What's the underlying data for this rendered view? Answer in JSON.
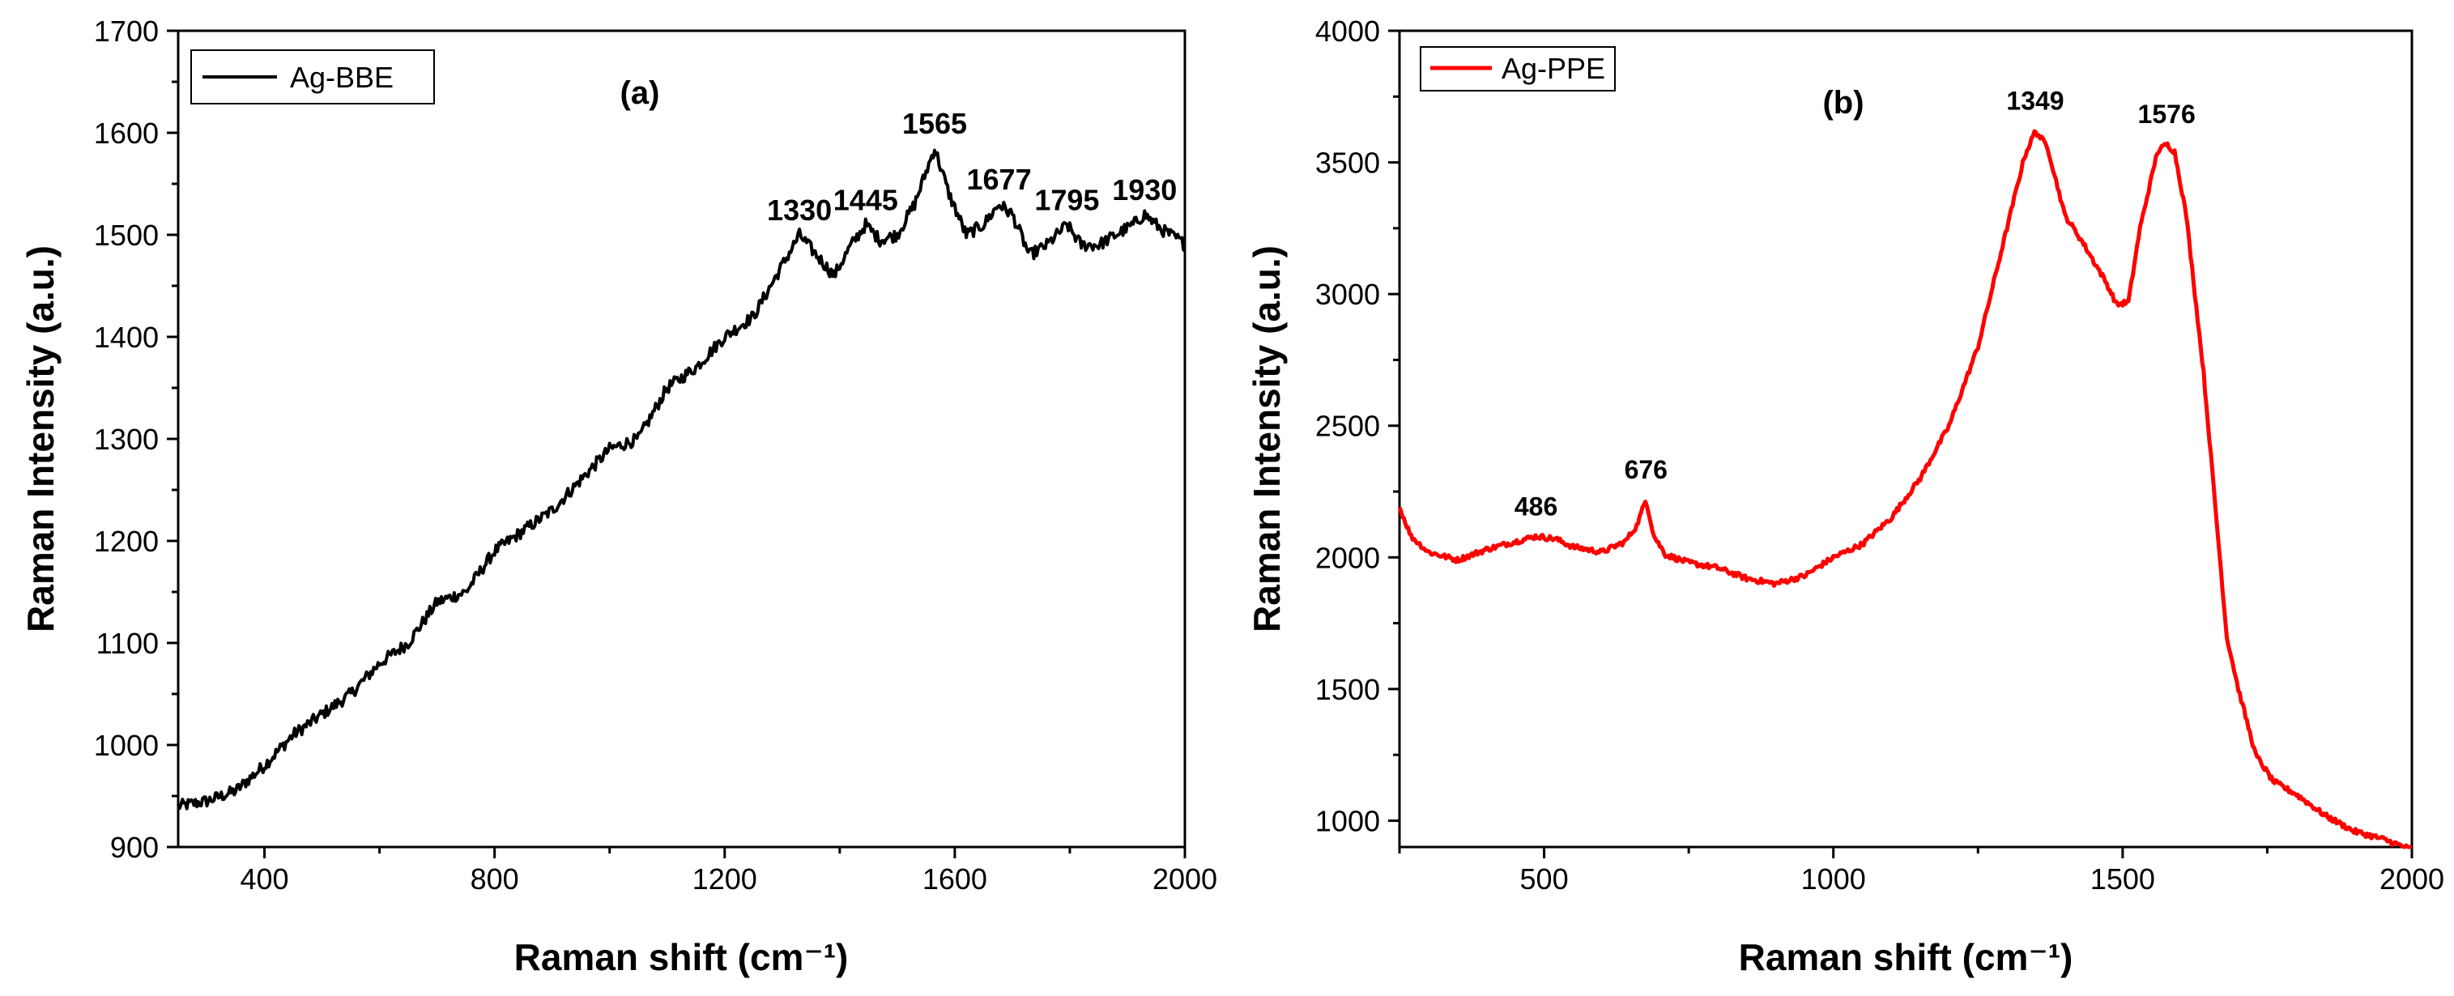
{
  "chart_data": [
    {
      "id": "a",
      "type": "line",
      "panel_label": "(a)",
      "xlabel": "Raman shift (cm⁻¹)",
      "ylabel": "Raman Intensity (a.u.)",
      "xlim": [
        250,
        2000
      ],
      "ylim": [
        900,
        1700
      ],
      "xticks": [
        400,
        800,
        1200,
        1600,
        2000
      ],
      "yticks": [
        900,
        1000,
        1100,
        1200,
        1300,
        1400,
        1500,
        1600,
        1700
      ],
      "color": "#000000",
      "legend": {
        "label": "Ag-BBE",
        "position": "top-left"
      },
      "series": [
        {
          "name": "Ag-BBE",
          "x": [
            250,
            300,
            350,
            400,
            450,
            500,
            550,
            600,
            650,
            700,
            750,
            800,
            850,
            900,
            950,
            1000,
            1050,
            1100,
            1150,
            1200,
            1250,
            1300,
            1330,
            1360,
            1390,
            1420,
            1445,
            1470,
            1500,
            1530,
            1565,
            1590,
            1620,
            1650,
            1677,
            1700,
            1730,
            1760,
            1795,
            1820,
            1850,
            1880,
            1910,
            1930,
            1960,
            1990,
            2000
          ],
          "y": [
            940,
            945,
            955,
            980,
            1010,
            1030,
            1050,
            1080,
            1100,
            1140,
            1150,
            1190,
            1210,
            1230,
            1260,
            1290,
            1300,
            1350,
            1370,
            1400,
            1420,
            1470,
            1500,
            1480,
            1460,
            1490,
            1510,
            1495,
            1500,
            1530,
            1585,
            1540,
            1500,
            1510,
            1530,
            1520,
            1480,
            1490,
            1510,
            1490,
            1490,
            1500,
            1510,
            1520,
            1505,
            1495,
            1490
          ]
        }
      ],
      "annotations": [
        {
          "text": "1330",
          "x": 1330,
          "y": 1500
        },
        {
          "text": "1445",
          "x": 1445,
          "y": 1510
        },
        {
          "text": "1565",
          "x": 1565,
          "y": 1585
        },
        {
          "text": "1677",
          "x": 1677,
          "y": 1530
        },
        {
          "text": "1795",
          "x": 1795,
          "y": 1510
        },
        {
          "text": "1930",
          "x": 1930,
          "y": 1520
        }
      ]
    },
    {
      "id": "b",
      "type": "line",
      "panel_label": "(b)",
      "xlabel": "Raman shift (cm⁻¹)",
      "ylabel": "Raman Intensity (a.u.)",
      "xlim": [
        250,
        2000
      ],
      "ylim": [
        900,
        4000
      ],
      "xticks": [
        500,
        1000,
        1500,
        2000
      ],
      "yticks": [
        1000,
        1500,
        2000,
        2500,
        3000,
        3500,
        4000
      ],
      "color": "#ff0000",
      "legend": {
        "label": "Ag-PPE",
        "position": "top-left"
      },
      "series": [
        {
          "name": "Ag-PPE",
          "x": [
            250,
            270,
            300,
            350,
            400,
            450,
            486,
            520,
            550,
            600,
            640,
            660,
            676,
            690,
            710,
            750,
            800,
            850,
            900,
            950,
            1000,
            1050,
            1100,
            1150,
            1200,
            1250,
            1300,
            1330,
            1349,
            1370,
            1400,
            1430,
            1470,
            1490,
            1510,
            1530,
            1560,
            1576,
            1590,
            1610,
            1640,
            1660,
            1680,
            1700,
            1730,
            1760,
            1800,
            1850,
            1900,
            1950,
            2000
          ],
          "y": [
            2190,
            2080,
            2020,
            1990,
            2030,
            2060,
            2080,
            2070,
            2040,
            2020,
            2060,
            2120,
            2220,
            2080,
            2010,
            1980,
            1960,
            1920,
            1900,
            1930,
            2000,
            2050,
            2150,
            2300,
            2500,
            2800,
            3250,
            3520,
            3620,
            3560,
            3300,
            3200,
            3050,
            2960,
            2970,
            3250,
            3540,
            3570,
            3540,
            3300,
            2700,
            2200,
            1700,
            1500,
            1250,
            1150,
            1100,
            1020,
            960,
            930,
            890
          ]
        }
      ],
      "annotations": [
        {
          "text": "486",
          "x": 486,
          "y": 2080
        },
        {
          "text": "676",
          "x": 676,
          "y": 2220
        },
        {
          "text": "1349",
          "x": 1349,
          "y": 3620
        },
        {
          "text": "1576",
          "x": 1576,
          "y": 3570
        }
      ]
    }
  ]
}
